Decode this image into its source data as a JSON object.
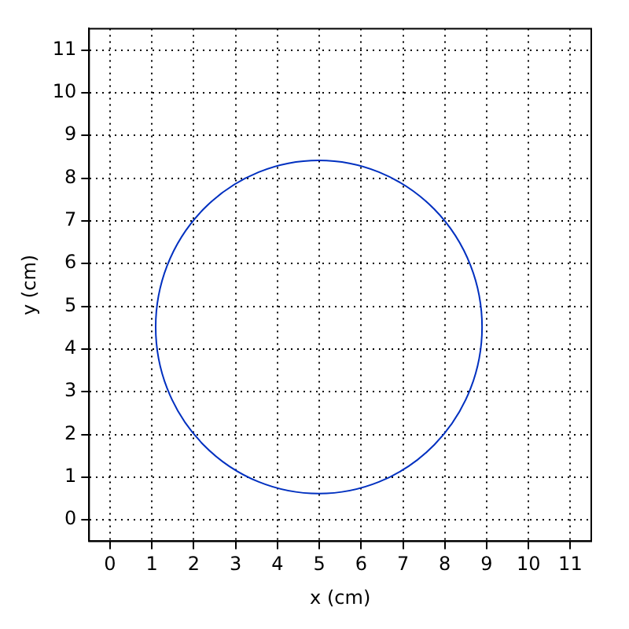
{
  "chart_data": {
    "type": "line",
    "xlabel": "x (cm)",
    "ylabel": "y (cm)",
    "xlim": [
      -0.5,
      11.5
    ],
    "ylim": [
      -0.5,
      11.5
    ],
    "xticks": [
      0,
      1,
      2,
      3,
      4,
      5,
      6,
      7,
      8,
      9,
      10,
      11
    ],
    "yticks": [
      0,
      1,
      2,
      3,
      4,
      5,
      6,
      7,
      8,
      9,
      10,
      11
    ],
    "grid": true,
    "legend": false
  }
}
